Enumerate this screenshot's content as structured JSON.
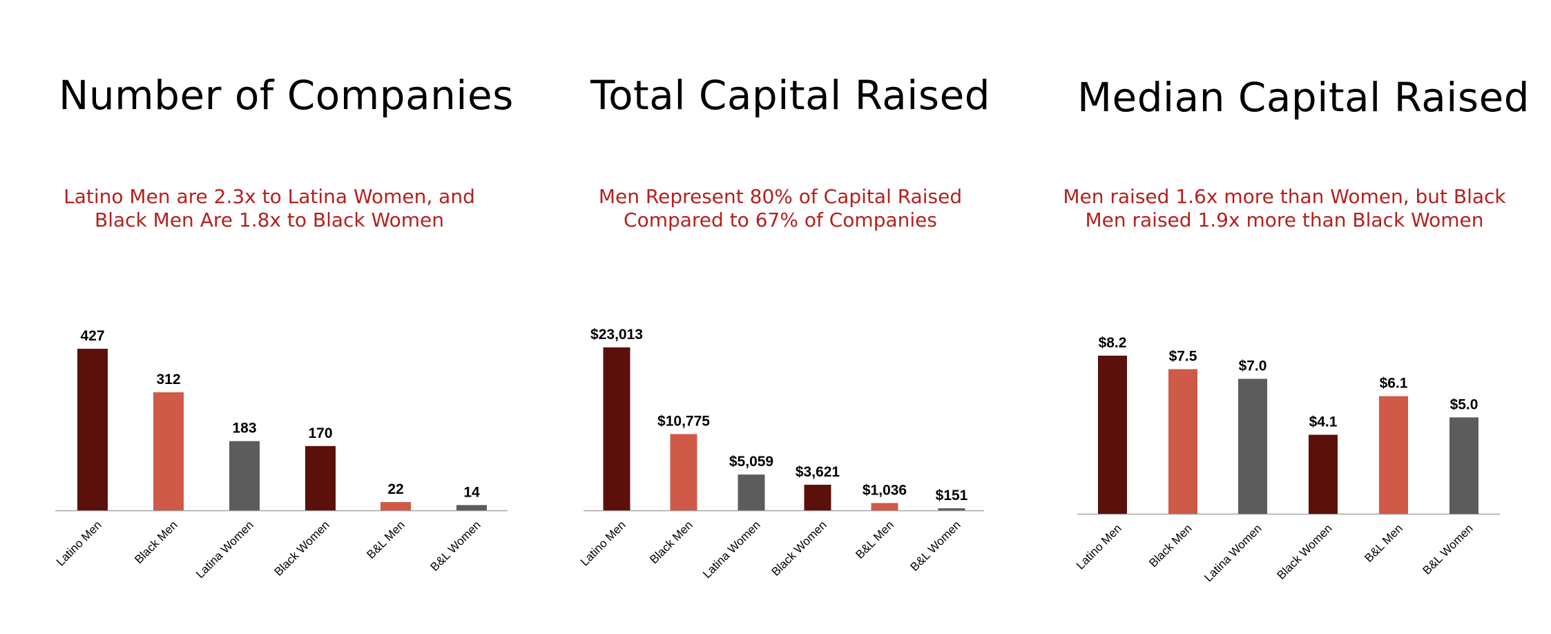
{
  "colors": {
    "dark_red": "#5b100c",
    "coral": "#cf5a47",
    "gray": "#5c5c5c",
    "axis": "#a6a6a6"
  },
  "panels": [
    {
      "title": "Number of Companies",
      "subtitle_lines": [
        "Latino Men are 2.3x to Latina Women, and",
        "Black Men Are 1.8x to Black Women"
      ]
    },
    {
      "title": "Total Capital Raised",
      "subtitle_lines": [
        "Men Represent 80% of Capital Raised",
        "Compared to 67% of Companies"
      ]
    },
    {
      "title": "Median Capital Raised",
      "subtitle_lines": [
        "Men raised 1.6x more than Women, but Black",
        "Men raised 1.9x more than Black Women"
      ]
    }
  ],
  "chart_data": [
    {
      "type": "bar",
      "title": "Number of Companies",
      "categories": [
        "Latino Men",
        "Black Men",
        "Latina Women",
        "Black Women",
        "B&L Men",
        "B&L Women"
      ],
      "values": [
        427,
        312,
        183,
        170,
        22,
        14
      ],
      "value_labels": [
        "427",
        "312",
        "183",
        "170",
        "22",
        "14"
      ],
      "bar_colors": [
        "#5b100c",
        "#cf5a47",
        "#5c5c5c",
        "#5b100c",
        "#cf5a47",
        "#5c5c5c"
      ],
      "ylim": [
        0,
        427
      ],
      "grid": false,
      "legend": "none"
    },
    {
      "type": "bar",
      "title": "Total Capital Raised",
      "categories": [
        "Latino Men",
        "Black Men",
        "Latina Women",
        "Black Women",
        "B&L Men",
        "B&L Women"
      ],
      "values": [
        23013,
        10775,
        5059,
        3621,
        1036,
        151
      ],
      "value_labels": [
        "$23,013",
        "$10,775",
        "$5,059",
        "$3,621",
        "$1,036",
        "$151"
      ],
      "bar_colors": [
        "#5b100c",
        "#cf5a47",
        "#5c5c5c",
        "#5b100c",
        "#cf5a47",
        "#5c5c5c"
      ],
      "ylim": [
        0,
        23013
      ],
      "grid": false,
      "legend": "none"
    },
    {
      "type": "bar",
      "title": "Median Capital Raised",
      "categories": [
        "Latino Men",
        "Black Men",
        "Latina Women",
        "Black Women",
        "B&L Men",
        "B&L Women"
      ],
      "values": [
        8.2,
        7.5,
        7.0,
        4.1,
        6.1,
        5.0
      ],
      "value_labels": [
        "$8.2",
        "$7.5",
        "$7.0",
        "$4.1",
        "$6.1",
        "$5.0"
      ],
      "bar_colors": [
        "#5b100c",
        "#cf5a47",
        "#5c5c5c",
        "#5b100c",
        "#cf5a47",
        "#5c5c5c"
      ],
      "ylim": [
        0,
        8.2
      ],
      "grid": false,
      "legend": "none"
    }
  ]
}
